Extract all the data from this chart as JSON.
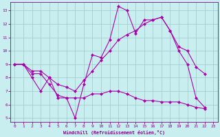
{
  "xlabel": "Windchill (Refroidissement éolien,°C)",
  "bg_color": "#c8eef0",
  "line_color": "#aa00aa",
  "grid_color": "#a0c8c8",
  "tick_color": "#880088",
  "xlim": [
    -0.5,
    23.5
  ],
  "ylim": [
    4.7,
    13.6
  ],
  "xticks": [
    0,
    1,
    2,
    3,
    4,
    5,
    6,
    7,
    8,
    9,
    10,
    11,
    12,
    13,
    14,
    15,
    16,
    17,
    18,
    19,
    20,
    21,
    22,
    23
  ],
  "yticks": [
    5,
    6,
    7,
    8,
    9,
    10,
    11,
    12,
    13
  ],
  "line1_x": [
    0,
    1,
    2,
    3,
    4,
    5,
    6,
    7,
    8,
    9,
    10,
    11,
    12,
    13,
    14,
    15,
    16,
    17,
    18,
    19,
    20,
    21,
    22
  ],
  "line1_y": [
    9.0,
    9.0,
    8.0,
    7.0,
    8.0,
    6.5,
    6.5,
    5.0,
    7.5,
    9.7,
    9.5,
    10.8,
    13.3,
    13.0,
    11.3,
    12.3,
    12.3,
    12.5,
    11.5,
    10.0,
    9.0,
    6.5,
    5.8
  ],
  "line2_x": [
    0,
    1,
    2,
    3,
    4,
    5,
    6,
    7,
    8,
    9,
    10,
    11,
    12,
    13,
    14,
    15,
    16,
    17,
    18,
    19,
    20,
    21,
    22
  ],
  "line2_y": [
    9.0,
    9.0,
    8.5,
    8.5,
    8.0,
    7.5,
    7.3,
    7.0,
    7.8,
    8.5,
    9.3,
    10.0,
    10.8,
    11.2,
    11.5,
    12.0,
    12.3,
    12.5,
    11.5,
    10.3,
    10.0,
    8.8,
    8.3
  ],
  "line3_x": [
    0,
    1,
    2,
    3,
    4,
    5,
    6,
    7,
    8,
    9,
    10,
    11,
    12,
    13,
    14,
    15,
    16,
    17,
    18,
    19,
    20,
    21,
    22
  ],
  "line3_y": [
    9.0,
    9.0,
    8.3,
    8.3,
    7.5,
    6.7,
    6.5,
    6.5,
    6.5,
    6.8,
    6.8,
    7.0,
    7.0,
    6.8,
    6.5,
    6.3,
    6.3,
    6.2,
    6.2,
    6.2,
    6.0,
    5.8,
    5.7
  ]
}
